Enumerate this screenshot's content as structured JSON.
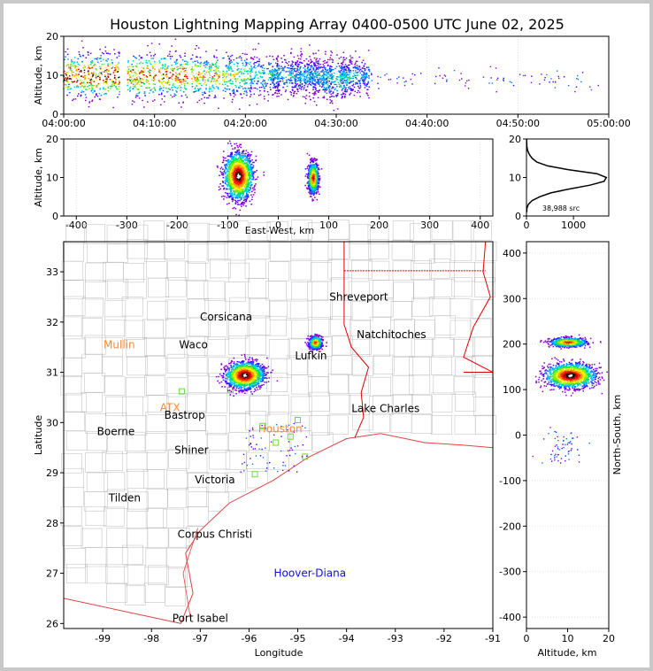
{
  "title": "Houston Lightning Mapping Array 0400-0500 UTC June 02, 2025",
  "source_count": "38,988 src",
  "colors": {
    "state_border": "#dd0000",
    "county_line": "#bbbbbb",
    "coast": "#dd4444",
    "station": "#66dd33",
    "city": "#000000",
    "city_alt": "#ff8833",
    "city_special": "#1111dd"
  },
  "chart_data": [
    {
      "type": "scatter",
      "panel": "altitude-vs-time",
      "ylabel": "Altitude, km",
      "xlabel": "",
      "ylim": [
        0,
        20
      ],
      "yticks": [
        0,
        10,
        20
      ],
      "xticks": [
        "04:00:00",
        "04:10:00",
        "04:20:00",
        "04:30:00",
        "04:40:00",
        "04:50:00",
        "05:00:00"
      ],
      "xlim_minutes": [
        0,
        60
      ],
      "density_bursts": [
        {
          "t": 1.5,
          "alt": 10,
          "spread": 3.0,
          "intensity": 1.0
        },
        {
          "t": 4.5,
          "alt": 10,
          "spread": 3.0,
          "intensity": 1.0
        },
        {
          "t": 8.5,
          "alt": 10,
          "spread": 3.0,
          "intensity": 0.9
        },
        {
          "t": 12.0,
          "alt": 10,
          "spread": 3.0,
          "intensity": 0.85
        },
        {
          "t": 15.5,
          "alt": 10,
          "spread": 3.0,
          "intensity": 0.75
        },
        {
          "t": 19.0,
          "alt": 10,
          "spread": 3.0,
          "intensity": 0.6
        },
        {
          "t": 22.0,
          "alt": 10,
          "spread": 2.5,
          "intensity": 0.45
        },
        {
          "t": 24.5,
          "alt": 10,
          "spread": 2.5,
          "intensity": 0.35
        },
        {
          "t": 26.5,
          "alt": 10,
          "spread": 2.5,
          "intensity": 0.4
        },
        {
          "t": 28.0,
          "alt": 10,
          "spread": 2.5,
          "intensity": 0.35
        },
        {
          "t": 30.0,
          "alt": 9,
          "spread": 2.5,
          "intensity": 0.5
        },
        {
          "t": 32.0,
          "alt": 10,
          "spread": 2.5,
          "intensity": 0.35
        }
      ],
      "sparse_window_minutes": [
        32,
        59
      ]
    },
    {
      "type": "scatter",
      "panel": "altitude-vs-east-west",
      "ylabel": "Altitude, km",
      "xlabel": "East-West, km",
      "ylim": [
        0,
        20
      ],
      "yticks": [
        0,
        10,
        20
      ],
      "xlim": [
        -425,
        425
      ],
      "xticks": [
        -400,
        -300,
        -200,
        -100,
        0,
        100,
        200,
        300,
        400
      ],
      "clusters": [
        {
          "x": -80,
          "alt": 10.5,
          "sx": 14,
          "sy": 3.0,
          "intensity": 1.0
        },
        {
          "x": 68,
          "alt": 10,
          "sx": 5,
          "sy": 2.0,
          "intensity": 0.5
        }
      ]
    },
    {
      "type": "line",
      "panel": "altitude-histogram",
      "xlim": [
        0,
        1750
      ],
      "xticks": [
        0,
        1000
      ],
      "ylim": [
        0,
        20
      ],
      "yticks": [
        0,
        10,
        20
      ],
      "x": [
        5,
        10,
        40,
        120,
        280,
        520,
        900,
        1350,
        1650,
        1700,
        1500,
        900,
        450,
        220,
        120,
        60,
        25,
        10,
        5,
        3
      ],
      "y": [
        1,
        2,
        3,
        4,
        5,
        6,
        7,
        8,
        9,
        10,
        11,
        12,
        13,
        14,
        15,
        16,
        17,
        18,
        19,
        20
      ]
    },
    {
      "type": "scatter",
      "panel": "map",
      "xlabel": "Longitude",
      "ylabel": "Latitude",
      "xlim": [
        -99.8,
        -91.0
      ],
      "ylim": [
        25.9,
        33.6
      ],
      "xticks": [
        -99,
        -98,
        -97,
        -96,
        -95,
        -94,
        -93,
        -92,
        -91
      ],
      "yticks": [
        26,
        27,
        28,
        29,
        30,
        31,
        32,
        33
      ],
      "clusters": [
        {
          "lon": -96.1,
          "lat": 30.95,
          "slon": 0.18,
          "slat": 0.12,
          "intensity": 1.0
        },
        {
          "lon": -94.65,
          "lat": 31.6,
          "slon": 0.06,
          "slat": 0.06,
          "intensity": 0.45
        }
      ],
      "cities": [
        {
          "name": "Shreveport",
          "lon": -93.75,
          "lat": 32.5,
          "color": "#000000"
        },
        {
          "name": "Corsicana",
          "lon": -96.47,
          "lat": 32.1,
          "color": "#000000"
        },
        {
          "name": "Mullin",
          "lon": -98.66,
          "lat": 31.55,
          "color": "#ff8833"
        },
        {
          "name": "Waco",
          "lon": -97.14,
          "lat": 31.55,
          "color": "#000000"
        },
        {
          "name": "Natchitoches",
          "lon": -93.08,
          "lat": 31.75,
          "color": "#000000"
        },
        {
          "name": "Lufkin",
          "lon": -94.73,
          "lat": 31.33,
          "color": "#000000"
        },
        {
          "name": "ATX",
          "lon": -97.62,
          "lat": 30.3,
          "color": "#ff8833"
        },
        {
          "name": "Bastrop",
          "lon": -97.32,
          "lat": 30.15,
          "color": "#000000"
        },
        {
          "name": "Houston",
          "lon": -95.36,
          "lat": 29.87,
          "color": "#ff8833"
        },
        {
          "name": "Lake Charles",
          "lon": -93.2,
          "lat": 30.28,
          "color": "#000000"
        },
        {
          "name": "Boerne",
          "lon": -98.73,
          "lat": 29.82,
          "color": "#000000"
        },
        {
          "name": "Shiner",
          "lon": -97.18,
          "lat": 29.45,
          "color": "#000000"
        },
        {
          "name": "Victoria",
          "lon": -96.7,
          "lat": 28.86,
          "color": "#000000"
        },
        {
          "name": "Tilden",
          "lon": -98.55,
          "lat": 28.5,
          "color": "#000000"
        },
        {
          "name": "Corpus Christi",
          "lon": -96.7,
          "lat": 27.78,
          "color": "#000000"
        },
        {
          "name": "Hoover-Diana",
          "lon": -94.75,
          "lat": 27.0,
          "color": "#1111dd"
        },
        {
          "name": "Port Isabel",
          "lon": -97.0,
          "lat": 26.1,
          "color": "#000000"
        }
      ],
      "stations": [
        {
          "lon": -97.38,
          "lat": 30.62
        },
        {
          "lon": -96.38,
          "lat": 30.65
        },
        {
          "lon": -95.0,
          "lat": 30.05
        },
        {
          "lon": -95.72,
          "lat": 29.93
        },
        {
          "lon": -95.15,
          "lat": 29.72
        },
        {
          "lon": -94.85,
          "lat": 29.32
        },
        {
          "lon": -95.88,
          "lat": 28.97
        },
        {
          "lon": -95.45,
          "lat": 29.6
        }
      ]
    },
    {
      "type": "scatter",
      "panel": "north-south-vs-altitude",
      "xlabel": "Altitude, km",
      "ylabel": "North-South, km",
      "xlim": [
        0,
        20
      ],
      "xticks": [
        0,
        10,
        20
      ],
      "ylim": [
        -425,
        425
      ],
      "yticks": [
        -400,
        -300,
        -200,
        -100,
        0,
        100,
        200,
        300,
        400
      ],
      "clusters": [
        {
          "alt": 10.5,
          "ns": 132,
          "salt": 3.0,
          "sns": 13,
          "intensity": 1.0
        },
        {
          "alt": 10,
          "ns": 205,
          "salt": 2.2,
          "sns": 5,
          "intensity": 0.45
        }
      ]
    }
  ]
}
